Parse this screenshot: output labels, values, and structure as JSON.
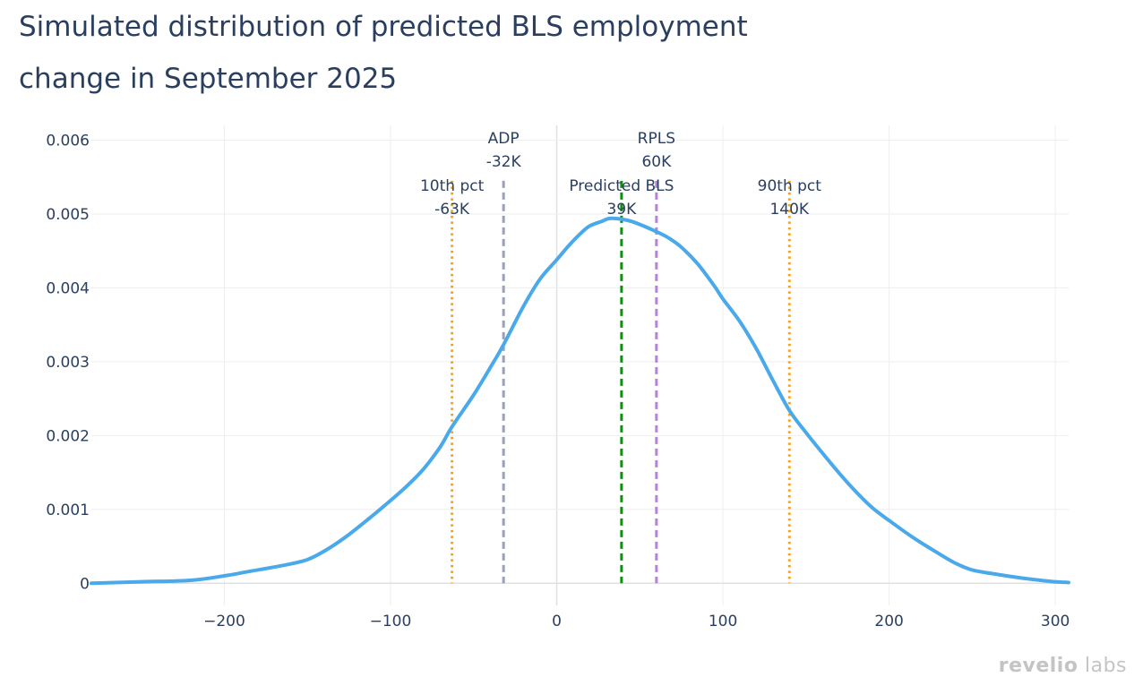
{
  "chart_data": {
    "type": "line",
    "title_lines": [
      "Simulated distribution of predicted BLS employment",
      "change in September 2025"
    ],
    "xlim": [
      -280,
      308
    ],
    "ylim": [
      -0.0003,
      0.0062
    ],
    "x_ticks": [
      -200,
      -100,
      0,
      100,
      200,
      300
    ],
    "x_tick_labels": [
      "−200",
      "−100",
      "0",
      "100",
      "200",
      "300"
    ],
    "y_ticks": [
      0,
      0.001,
      0.002,
      0.003,
      0.004,
      0.005,
      0.006
    ],
    "y_tick_labels": [
      "0",
      "0.001",
      "0.002",
      "0.003",
      "0.004",
      "0.005",
      "0.006"
    ],
    "series": [
      {
        "name": "density",
        "color": "#4aa9ea",
        "x": [
          -280,
          -250,
          -220,
          -200,
          -185,
          -165,
          -150,
          -138,
          -125,
          -110,
          -100,
          -90,
          -80,
          -70,
          -63,
          -50,
          -40,
          -32,
          -20,
          -10,
          0,
          8,
          15,
          20,
          27,
          32,
          39,
          45,
          52,
          60,
          67,
          75,
          85,
          95,
          100,
          110,
          120,
          130,
          140,
          150,
          160,
          170,
          180,
          190,
          200,
          215,
          230,
          240,
          250,
          265,
          280,
          295,
          300,
          308
        ],
        "y": [
          0.0,
          2e-05,
          4e-05,
          0.0001,
          0.00016,
          0.00024,
          0.00032,
          0.00046,
          0.00066,
          0.00093,
          0.00112,
          0.00132,
          0.00155,
          0.00185,
          0.00212,
          0.00255,
          0.00292,
          0.00323,
          0.00375,
          0.00412,
          0.00438,
          0.00459,
          0.00475,
          0.00484,
          0.0049,
          0.00494,
          0.00493,
          0.0049,
          0.00484,
          0.00476,
          0.00468,
          0.00455,
          0.00432,
          0.00402,
          0.00385,
          0.00355,
          0.00318,
          0.00275,
          0.00234,
          0.00204,
          0.00176,
          0.00149,
          0.00124,
          0.00102,
          0.00085,
          0.00061,
          0.0004,
          0.00027,
          0.00018,
          0.00012,
          7e-05,
          3e-05,
          2e-05,
          1e-05
        ]
      }
    ],
    "reference_lines": [
      {
        "name": "10th pct",
        "value": -63,
        "label": "10th pct",
        "value_label": "-63K",
        "color": "#f5a21c",
        "style": "dotted",
        "label_level": 1
      },
      {
        "name": "ADP",
        "value": -32,
        "label": "ADP",
        "value_label": "-32K",
        "color": "#9aa0bb",
        "style": "dashed",
        "label_level": 2
      },
      {
        "name": "Predicted BLS",
        "value": 39,
        "label": "Predicted BLS",
        "value_label": "39K",
        "color": "#118d11",
        "style": "dashed",
        "label_level": 1
      },
      {
        "name": "RPLS",
        "value": 60,
        "label": "RPLS",
        "value_label": "60K",
        "color": "#b97ee0",
        "style": "dashed",
        "label_level": 2
      },
      {
        "name": "90th pct",
        "value": 140,
        "label": "90th pct",
        "value_label": "140K",
        "color": "#f5a21c",
        "style": "dotted",
        "label_level": 1
      }
    ],
    "ref_line_top_y": 0.00545
  },
  "logo": {
    "part1": "revelio",
    "part2": "labs"
  }
}
